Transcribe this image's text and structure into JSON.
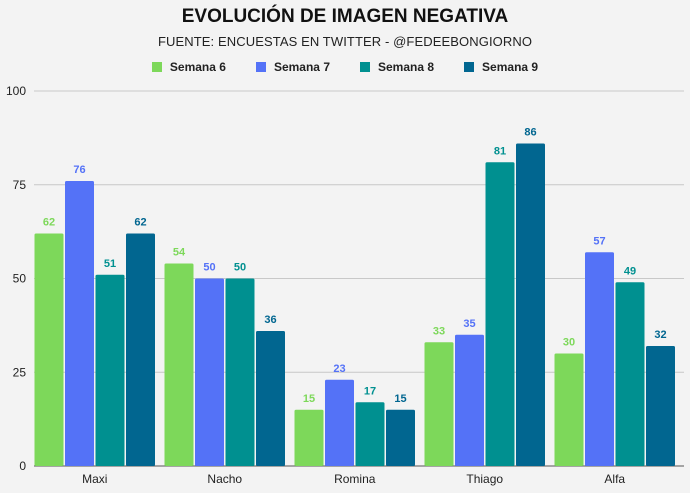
{
  "chart_data": {
    "type": "bar",
    "title": "EVOLUCIÓN DE IMAGEN NEGATIVA",
    "subtitle": "FUENTE: ENCUESTAS EN TWITTER - @FEDEEBONGIORNO",
    "categories": [
      "Maxi",
      "Nacho",
      "Romina",
      "Thiago",
      "Alfa"
    ],
    "series": [
      {
        "name": "Semana 6",
        "color": "#7dd85a",
        "values": [
          62,
          54,
          15,
          33,
          30
        ]
      },
      {
        "name": "Semana 7",
        "color": "#5472f7",
        "values": [
          76,
          50,
          23,
          35,
          57
        ]
      },
      {
        "name": "Semana 8",
        "color": "#009090",
        "values": [
          51,
          50,
          17,
          81,
          49
        ]
      },
      {
        "name": "Semana 9",
        "color": "#016690",
        "values": [
          62,
          36,
          15,
          86,
          32
        ]
      }
    ],
    "yticks": [
      0,
      25,
      50,
      75,
      100
    ],
    "ylim": [
      0,
      100
    ],
    "xlabel": "",
    "ylabel": "",
    "grid": true,
    "legend_position": "top"
  }
}
